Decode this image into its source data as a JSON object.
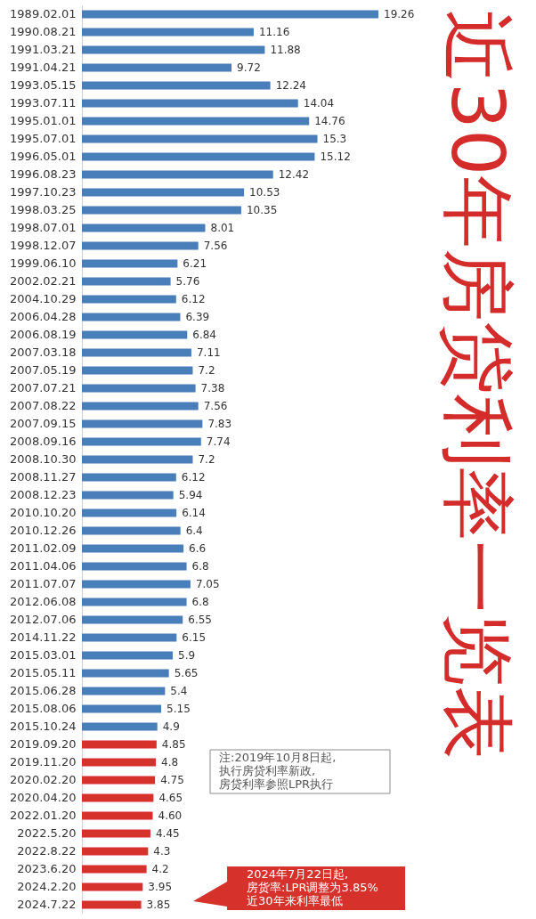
{
  "chart_data": {
    "type": "bar",
    "orientation": "horizontal",
    "title": "近30年房贷利率一览表",
    "categories": [
      "1989.02.01",
      "1990.08.21",
      "1991.03.21",
      "1991.04.21",
      "1993.05.15",
      "1993.07.11",
      "1995.01.01",
      "1995.07.01",
      "1996.05.01",
      "1996.08.23",
      "1997.10.23",
      "1998.03.25",
      "1998.07.01",
      "1998.12.07",
      "1999.06.10",
      "2002.02.21",
      "2004.10.29",
      "2006.04.28",
      "2006.08.19",
      "2007.03.18",
      "2007.05.19",
      "2007.07.21",
      "2007.08.22",
      "2007.09.15",
      "2008.09.16",
      "2008.10.30",
      "2008.11.27",
      "2008.12.23",
      "2010.10.20",
      "2010.12.26",
      "2011.02.09",
      "2011.04.06",
      "2011.07.07",
      "2012.06.08",
      "2012.07.06",
      "2014.11.22",
      "2015.03.01",
      "2015.05.11",
      "2015.06.28",
      "2015.08.06",
      "2015.10.24",
      "2019.09.20",
      "2019.11.20",
      "2020.02.20",
      "2020.04.20",
      "2022.01.20",
      "2022.5.20",
      "2022.8.22",
      "2023.6.20",
      "2024.2.20",
      "2024.7.22"
    ],
    "values": [
      19.26,
      11.16,
      11.88,
      9.72,
      12.24,
      14.04,
      14.76,
      15.3,
      15.12,
      12.42,
      10.53,
      10.35,
      8.01,
      7.56,
      6.21,
      5.76,
      6.12,
      6.39,
      6.84,
      7.11,
      7.2,
      7.38,
      7.56,
      7.83,
      7.74,
      7.2,
      6.12,
      5.94,
      6.14,
      6.4,
      6.6,
      6.8,
      7.05,
      6.8,
      6.55,
      6.15,
      5.9,
      5.65,
      5.4,
      5.15,
      4.9,
      4.85,
      4.8,
      4.75,
      4.65,
      4.6,
      4.45,
      4.3,
      4.2,
      3.95,
      3.85
    ],
    "value_labels": [
      "19.26",
      "11.16",
      "11.88",
      "9.72",
      "12.24",
      "14.04",
      "14.76",
      "15.3",
      "15.12",
      "12.42",
      "10.53",
      "10.35",
      "8.01",
      "7.56",
      "6.21",
      "5.76",
      "6.12",
      "6.39",
      "6.84",
      "7.11",
      "7.2",
      "7.38",
      "7.56",
      "7.83",
      "7.74",
      "7.2",
      "6.12",
      "5.94",
      "6.14",
      "6.4",
      "6.6",
      "6.8",
      "7.05",
      "6.8",
      "6.55",
      "6.15",
      "5.9",
      "5.65",
      "5.4",
      "5.15",
      "4.9",
      "4.85",
      "4.8",
      "4.75",
      "4.65",
      "4.60",
      "4.45",
      "4.3",
      "4.2",
      "3.95",
      "3.85"
    ],
    "colors": [
      "#4a7ebb",
      "#4a7ebb",
      "#4a7ebb",
      "#4a7ebb",
      "#4a7ebb",
      "#4a7ebb",
      "#4a7ebb",
      "#4a7ebb",
      "#4a7ebb",
      "#4a7ebb",
      "#4a7ebb",
      "#4a7ebb",
      "#4a7ebb",
      "#4a7ebb",
      "#4a7ebb",
      "#4a7ebb",
      "#4a7ebb",
      "#4a7ebb",
      "#4a7ebb",
      "#4a7ebb",
      "#4a7ebb",
      "#4a7ebb",
      "#4a7ebb",
      "#4a7ebb",
      "#4a7ebb",
      "#4a7ebb",
      "#4a7ebb",
      "#4a7ebb",
      "#4a7ebb",
      "#4a7ebb",
      "#4a7ebb",
      "#4a7ebb",
      "#4a7ebb",
      "#4a7ebb",
      "#4a7ebb",
      "#4a7ebb",
      "#4a7ebb",
      "#4a7ebb",
      "#4a7ebb",
      "#4a7ebb",
      "#4a7ebb",
      "#d7312c",
      "#d7312c",
      "#d7312c",
      "#d7312c",
      "#d7312c",
      "#d7312c",
      "#d7312c",
      "#d7312c",
      "#d7312c",
      "#d7312c"
    ],
    "annotations": [
      "注:2019年10月8日起,\n执行房贷利率新政,\n房贷利率参照LPR执行",
      "2024年7月22日起,\n房货率:LPR调整为3.85%\n近30年来利率最低"
    ]
  }
}
